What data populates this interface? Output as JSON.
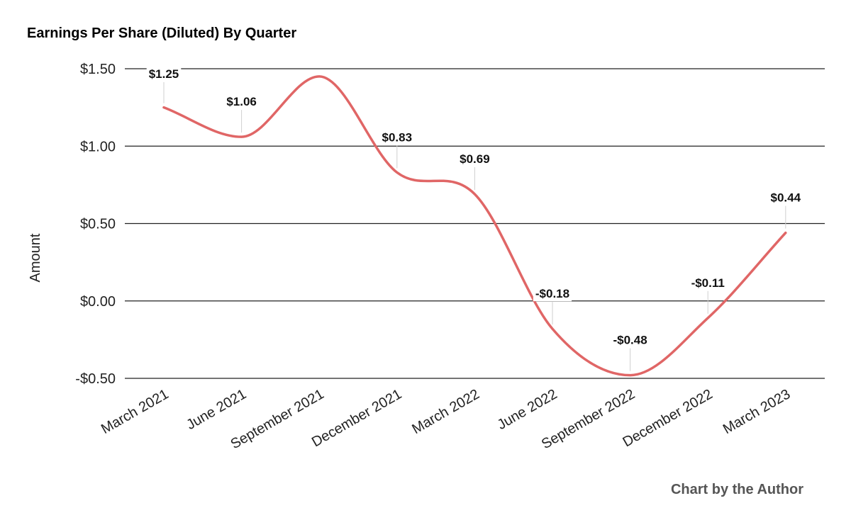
{
  "title": "Earnings Per Share (Diluted) By Quarter",
  "footer": "Chart by the Author",
  "chart_data": {
    "type": "line",
    "title": "Earnings Per Share (Diluted) By Quarter",
    "xlabel": "",
    "ylabel": "Amount",
    "categories": [
      "March 2021",
      "June 2021",
      "September 2021",
      "December 2021",
      "March 2022",
      "June 2022",
      "September 2022",
      "December 2022",
      "March 2023"
    ],
    "series": [
      {
        "values": [
          1.25,
          1.06,
          1.45,
          0.83,
          0.69,
          -0.18,
          -0.48,
          -0.11,
          0.44
        ]
      }
    ],
    "data_labels": [
      "$1.25",
      "$1.06",
      "",
      "$0.83",
      "$0.69",
      "-$0.18",
      "-$0.48",
      "-$0.11",
      "$0.44"
    ],
    "ylim": [
      -0.5,
      1.5
    ],
    "yticks": [
      1.5,
      1.0,
      0.5,
      0.0,
      -0.5
    ],
    "ytick_labels": [
      "$1.50",
      "$1.00",
      "$0.50",
      "$0.00",
      "-$0.50"
    ],
    "grid": true,
    "legend": "none",
    "line_color": "#e06666"
  }
}
